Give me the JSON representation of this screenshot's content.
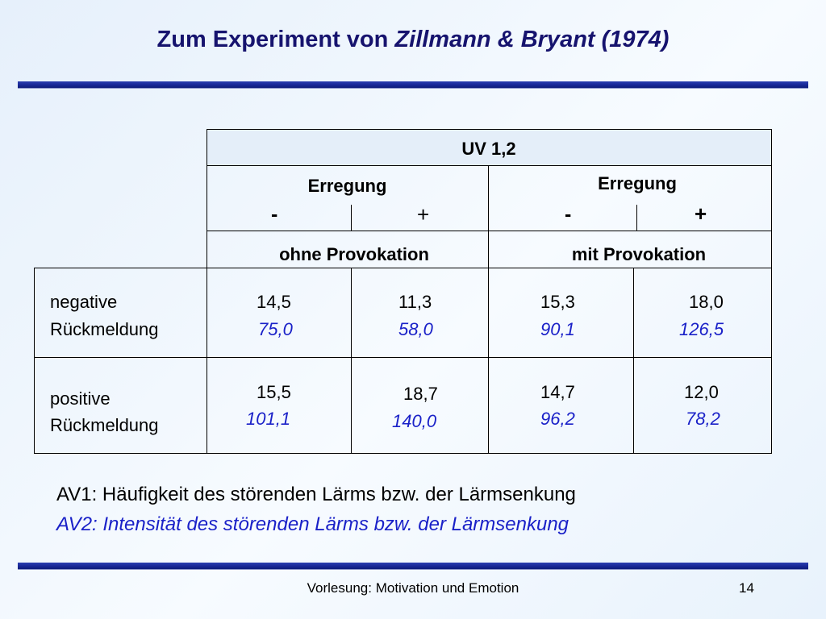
{
  "title": {
    "prefix": "Zum Experiment von ",
    "authors": "Zillmann & Bryant (1974)"
  },
  "table": {
    "uv": "UV 1,2",
    "erregung_left": "Erregung",
    "erregung_right": "Erregung",
    "signs": [
      "-",
      "+",
      "-",
      "+"
    ],
    "cond_left": "ohne Provokation",
    "cond_right": "mit Provokation",
    "rows": [
      {
        "label1": "negative",
        "label2": "Rückmeldung",
        "av1": [
          "14,5",
          "11,3",
          "15,3",
          "18,0"
        ],
        "av2": [
          "75,0",
          "58,0",
          "90,1",
          "126,5"
        ]
      },
      {
        "label1": "positive",
        "label2": "Rückmeldung",
        "av1": [
          "15,5",
          "18,7",
          "14,7",
          "12,0"
        ],
        "av2": [
          "101,1",
          "140,0",
          "96,2",
          "78,2"
        ]
      }
    ]
  },
  "notes": {
    "av1": "AV1: Häufigkeit des störenden Lärms bzw. der Lärmsenkung",
    "av2": "AV2: Intensität des störenden Lärms bzw. der Lärmsenkung"
  },
  "footer": {
    "lecture": "Vorlesung: Motivation und Emotion",
    "page": "14"
  },
  "colors": {
    "title": "#16136e",
    "accent_blue": "#1a21c8",
    "rule": "#1a2a9a"
  }
}
